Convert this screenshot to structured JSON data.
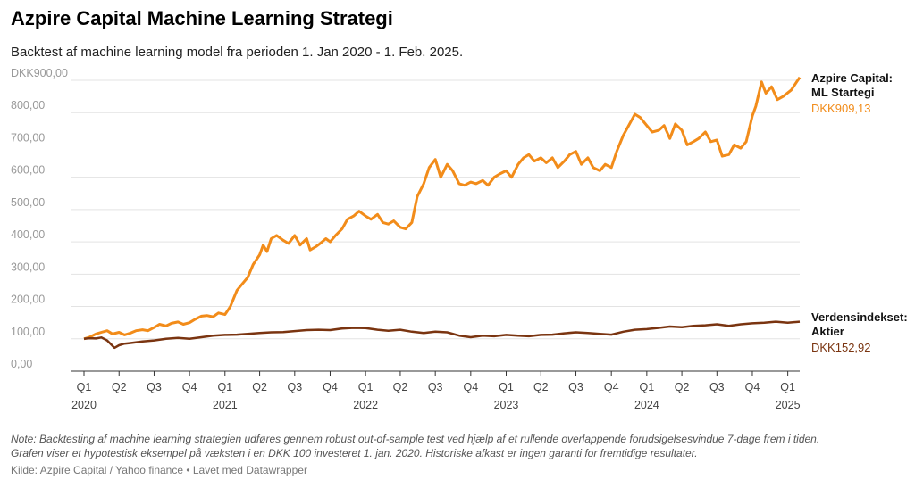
{
  "title": "Azpire Capital Machine Learning Strategi",
  "subtitle": "Backtest af machine learning model fra perioden 1. Jan 2020 - 1. Feb. 2025.",
  "note_lines": [
    "Note: Backtesting af machine learning strategien udføres gennem robust out-of-sample test ved hjælp af et rullende overlappende forudsigelsesvindue 7-dage frem i tiden.",
    "Grafen viser et hypotestisk eksempel på væksten i en DKK 100 investeret 1. jan. 2020. Historiske afkast er ingen garanti for fremtidige resultater."
  ],
  "source": "Kilde: Azpire Capital / Yahoo finance • Lavet med Datawrapper",
  "chart_data": {
    "type": "line",
    "title": "Azpire Capital Machine Learning Strategi",
    "xlabel": "",
    "ylabel": "",
    "ylim": [
      0,
      900
    ],
    "y_ticks": [
      0,
      100,
      200,
      300,
      400,
      500,
      600,
      700,
      800,
      900
    ],
    "y_tick_labels": [
      "0,00",
      "100,00",
      "200,00",
      "300,00",
      "400,00",
      "500,00",
      "600,00",
      "700,00",
      "800,00",
      "DKK900,00"
    ],
    "xlim": [
      "2020-01-01",
      "2025-02-01"
    ],
    "x_ticks": [
      {
        "date": "2020-01-01",
        "q": "Q1",
        "year": "2020"
      },
      {
        "date": "2020-04-01",
        "q": "Q2",
        "year": ""
      },
      {
        "date": "2020-07-01",
        "q": "Q3",
        "year": ""
      },
      {
        "date": "2020-10-01",
        "q": "Q4",
        "year": ""
      },
      {
        "date": "2021-01-01",
        "q": "Q1",
        "year": "2021"
      },
      {
        "date": "2021-04-01",
        "q": "Q2",
        "year": ""
      },
      {
        "date": "2021-07-01",
        "q": "Q3",
        "year": ""
      },
      {
        "date": "2021-10-01",
        "q": "Q4",
        "year": ""
      },
      {
        "date": "2022-01-01",
        "q": "Q1",
        "year": "2022"
      },
      {
        "date": "2022-04-01",
        "q": "Q2",
        "year": ""
      },
      {
        "date": "2022-07-01",
        "q": "Q3",
        "year": ""
      },
      {
        "date": "2022-10-01",
        "q": "Q4",
        "year": ""
      },
      {
        "date": "2023-01-01",
        "q": "Q1",
        "year": "2023"
      },
      {
        "date": "2023-04-01",
        "q": "Q2",
        "year": ""
      },
      {
        "date": "2023-07-01",
        "q": "Q3",
        "year": ""
      },
      {
        "date": "2023-10-01",
        "q": "Q4",
        "year": ""
      },
      {
        "date": "2024-01-01",
        "q": "Q1",
        "year": "2024"
      },
      {
        "date": "2024-04-01",
        "q": "Q2",
        "year": ""
      },
      {
        "date": "2024-07-01",
        "q": "Q3",
        "year": ""
      },
      {
        "date": "2024-10-01",
        "q": "Q4",
        "year": ""
      },
      {
        "date": "2025-01-01",
        "q": "Q1",
        "year": "2025"
      }
    ],
    "grid": true,
    "legend": "direct labels at line ends",
    "series": [
      {
        "name_lines": [
          "Azpire Capital:",
          "ML Startegi"
        ],
        "end_label": "DKK909,13",
        "color": "#f28c1a",
        "points": [
          [
            "2020-01-01",
            100
          ],
          [
            "2020-01-15",
            105
          ],
          [
            "2020-02-01",
            115
          ],
          [
            "2020-02-15",
            120
          ],
          [
            "2020-03-01",
            125
          ],
          [
            "2020-03-15",
            115
          ],
          [
            "2020-04-01",
            120
          ],
          [
            "2020-04-15",
            112
          ],
          [
            "2020-05-01",
            118
          ],
          [
            "2020-05-15",
            125
          ],
          [
            "2020-06-01",
            128
          ],
          [
            "2020-06-15",
            125
          ],
          [
            "2020-07-01",
            135
          ],
          [
            "2020-07-15",
            145
          ],
          [
            "2020-08-01",
            140
          ],
          [
            "2020-08-15",
            148
          ],
          [
            "2020-09-01",
            152
          ],
          [
            "2020-09-15",
            145
          ],
          [
            "2020-10-01",
            150
          ],
          [
            "2020-10-15",
            160
          ],
          [
            "2020-11-01",
            170
          ],
          [
            "2020-11-15",
            172
          ],
          [
            "2020-12-01",
            168
          ],
          [
            "2020-12-15",
            180
          ],
          [
            "2021-01-01",
            175
          ],
          [
            "2021-01-15",
            200
          ],
          [
            "2021-02-01",
            250
          ],
          [
            "2021-02-15",
            270
          ],
          [
            "2021-03-01",
            290
          ],
          [
            "2021-03-15",
            330
          ],
          [
            "2021-04-01",
            360
          ],
          [
            "2021-04-10",
            390
          ],
          [
            "2021-04-20",
            370
          ],
          [
            "2021-05-01",
            410
          ],
          [
            "2021-05-15",
            420
          ],
          [
            "2021-06-01",
            405
          ],
          [
            "2021-06-15",
            395
          ],
          [
            "2021-07-01",
            420
          ],
          [
            "2021-07-15",
            390
          ],
          [
            "2021-08-01",
            410
          ],
          [
            "2021-08-10",
            375
          ],
          [
            "2021-08-25",
            385
          ],
          [
            "2021-09-05",
            395
          ],
          [
            "2021-09-20",
            410
          ],
          [
            "2021-10-01",
            400
          ],
          [
            "2021-10-15",
            420
          ],
          [
            "2021-11-01",
            440
          ],
          [
            "2021-11-15",
            470
          ],
          [
            "2021-12-01",
            480
          ],
          [
            "2021-12-15",
            495
          ],
          [
            "2022-01-01",
            480
          ],
          [
            "2022-01-15",
            470
          ],
          [
            "2022-02-01",
            485
          ],
          [
            "2022-02-15",
            460
          ],
          [
            "2022-03-01",
            455
          ],
          [
            "2022-03-15",
            465
          ],
          [
            "2022-04-01",
            445
          ],
          [
            "2022-04-15",
            440
          ],
          [
            "2022-05-01",
            460
          ],
          [
            "2022-05-15",
            540
          ],
          [
            "2022-06-01",
            580
          ],
          [
            "2022-06-15",
            630
          ],
          [
            "2022-07-01",
            655
          ],
          [
            "2022-07-15",
            600
          ],
          [
            "2022-08-01",
            640
          ],
          [
            "2022-08-15",
            620
          ],
          [
            "2022-09-01",
            580
          ],
          [
            "2022-09-15",
            575
          ],
          [
            "2022-10-01",
            585
          ],
          [
            "2022-10-15",
            580
          ],
          [
            "2022-11-01",
            590
          ],
          [
            "2022-11-15",
            575
          ],
          [
            "2022-12-01",
            600
          ],
          [
            "2022-12-15",
            610
          ],
          [
            "2023-01-01",
            620
          ],
          [
            "2023-01-15",
            600
          ],
          [
            "2023-02-01",
            640
          ],
          [
            "2023-02-15",
            660
          ],
          [
            "2023-03-01",
            670
          ],
          [
            "2023-03-15",
            650
          ],
          [
            "2023-04-01",
            660
          ],
          [
            "2023-04-15",
            645
          ],
          [
            "2023-05-01",
            660
          ],
          [
            "2023-05-15",
            630
          ],
          [
            "2023-06-01",
            650
          ],
          [
            "2023-06-15",
            670
          ],
          [
            "2023-07-01",
            680
          ],
          [
            "2023-07-15",
            640
          ],
          [
            "2023-08-01",
            660
          ],
          [
            "2023-08-15",
            630
          ],
          [
            "2023-09-01",
            620
          ],
          [
            "2023-09-15",
            640
          ],
          [
            "2023-10-01",
            630
          ],
          [
            "2023-10-15",
            680
          ],
          [
            "2023-11-01",
            730
          ],
          [
            "2023-11-15",
            760
          ],
          [
            "2023-12-01",
            795
          ],
          [
            "2023-12-15",
            785
          ],
          [
            "2024-01-01",
            760
          ],
          [
            "2024-01-15",
            740
          ],
          [
            "2024-02-01",
            745
          ],
          [
            "2024-02-15",
            760
          ],
          [
            "2024-03-01",
            720
          ],
          [
            "2024-03-15",
            765
          ],
          [
            "2024-04-01",
            745
          ],
          [
            "2024-04-15",
            700
          ],
          [
            "2024-05-01",
            710
          ],
          [
            "2024-05-15",
            720
          ],
          [
            "2024-06-01",
            740
          ],
          [
            "2024-06-15",
            710
          ],
          [
            "2024-07-01",
            715
          ],
          [
            "2024-07-15",
            665
          ],
          [
            "2024-08-01",
            670
          ],
          [
            "2024-08-15",
            700
          ],
          [
            "2024-09-01",
            690
          ],
          [
            "2024-09-15",
            710
          ],
          [
            "2024-10-01",
            790
          ],
          [
            "2024-10-10",
            820
          ],
          [
            "2024-10-25",
            895
          ],
          [
            "2024-11-05",
            860
          ],
          [
            "2024-11-20",
            880
          ],
          [
            "2024-12-05",
            840
          ],
          [
            "2024-12-20",
            850
          ],
          [
            "2025-01-10",
            870
          ],
          [
            "2025-02-01",
            909.13
          ]
        ]
      },
      {
        "name_lines": [
          "Verdensindekset:",
          "Aktier"
        ],
        "end_label": "DKK152,92",
        "color": "#7a3410",
        "points": [
          [
            "2020-01-01",
            100
          ],
          [
            "2020-01-15",
            102
          ],
          [
            "2020-02-01",
            101
          ],
          [
            "2020-02-15",
            104
          ],
          [
            "2020-03-01",
            95
          ],
          [
            "2020-03-20",
            72
          ],
          [
            "2020-04-01",
            80
          ],
          [
            "2020-04-15",
            85
          ],
          [
            "2020-05-01",
            87
          ],
          [
            "2020-06-01",
            92
          ],
          [
            "2020-07-01",
            95
          ],
          [
            "2020-08-01",
            100
          ],
          [
            "2020-09-01",
            103
          ],
          [
            "2020-10-01",
            100
          ],
          [
            "2020-11-01",
            105
          ],
          [
            "2020-12-01",
            110
          ],
          [
            "2021-01-01",
            112
          ],
          [
            "2021-02-01",
            113
          ],
          [
            "2021-03-01",
            115
          ],
          [
            "2021-04-01",
            118
          ],
          [
            "2021-05-01",
            120
          ],
          [
            "2021-06-01",
            121
          ],
          [
            "2021-07-01",
            124
          ],
          [
            "2021-08-01",
            127
          ],
          [
            "2021-09-01",
            128
          ],
          [
            "2021-10-01",
            127
          ],
          [
            "2021-11-01",
            132
          ],
          [
            "2021-12-01",
            134
          ],
          [
            "2022-01-01",
            133
          ],
          [
            "2022-02-01",
            128
          ],
          [
            "2022-03-01",
            125
          ],
          [
            "2022-04-01",
            128
          ],
          [
            "2022-05-01",
            122
          ],
          [
            "2022-06-01",
            118
          ],
          [
            "2022-07-01",
            122
          ],
          [
            "2022-08-01",
            120
          ],
          [
            "2022-09-01",
            110
          ],
          [
            "2022-10-01",
            105
          ],
          [
            "2022-11-01",
            110
          ],
          [
            "2022-12-01",
            108
          ],
          [
            "2023-01-01",
            112
          ],
          [
            "2023-02-01",
            110
          ],
          [
            "2023-03-01",
            108
          ],
          [
            "2023-04-01",
            112
          ],
          [
            "2023-05-01",
            113
          ],
          [
            "2023-06-01",
            117
          ],
          [
            "2023-07-01",
            120
          ],
          [
            "2023-08-01",
            118
          ],
          [
            "2023-09-01",
            115
          ],
          [
            "2023-10-01",
            113
          ],
          [
            "2023-11-01",
            122
          ],
          [
            "2023-12-01",
            128
          ],
          [
            "2024-01-01",
            130
          ],
          [
            "2024-02-01",
            134
          ],
          [
            "2024-03-01",
            138
          ],
          [
            "2024-04-01",
            136
          ],
          [
            "2024-05-01",
            140
          ],
          [
            "2024-06-01",
            142
          ],
          [
            "2024-07-01",
            145
          ],
          [
            "2024-08-01",
            140
          ],
          [
            "2024-09-01",
            145
          ],
          [
            "2024-10-01",
            148
          ],
          [
            "2024-11-01",
            150
          ],
          [
            "2024-12-01",
            153
          ],
          [
            "2025-01-01",
            150
          ],
          [
            "2025-02-01",
            152.92
          ]
        ]
      }
    ]
  }
}
